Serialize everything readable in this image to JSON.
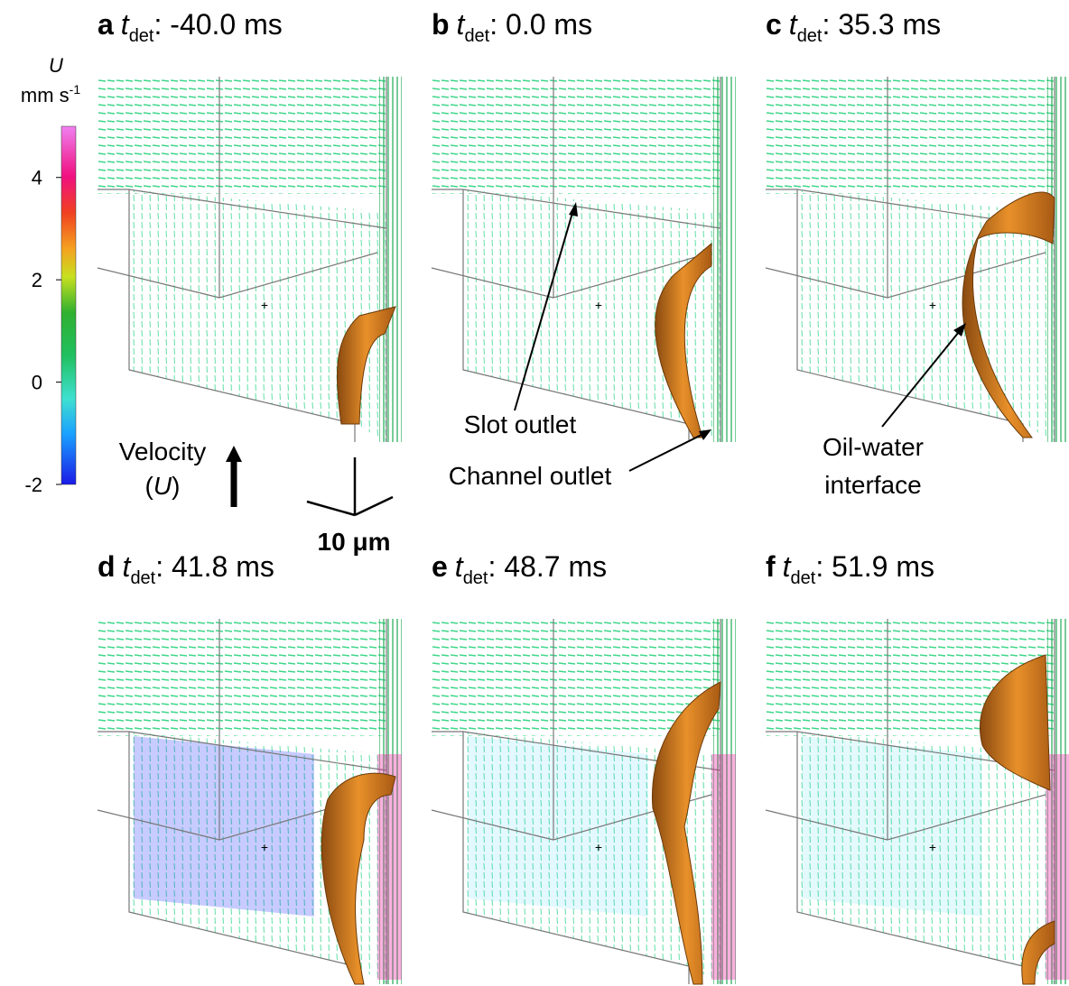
{
  "colorbar": {
    "symbol": "U",
    "unit": "mm s",
    "unit_exponent": "-1",
    "range": [
      -2,
      5
    ],
    "ticks": [
      4,
      2,
      0,
      -2
    ]
  },
  "panels": [
    {
      "letter": "a",
      "variable": "t",
      "subscript": "det",
      "rest": ": -40.0 ms"
    },
    {
      "letter": "b",
      "variable": "t",
      "subscript": "det",
      "rest": ": 0.0 ms"
    },
    {
      "letter": "c",
      "variable": "t",
      "subscript": "det",
      "rest": ": 35.3 ms"
    },
    {
      "letter": "d",
      "variable": "t",
      "subscript": "det",
      "rest": ": 41.8 ms"
    },
    {
      "letter": "e",
      "variable": "t",
      "subscript": "det",
      "rest": ": 48.7 ms"
    },
    {
      "letter": "f",
      "variable": "t",
      "subscript": "det",
      "rest": ": 51.9 ms"
    }
  ],
  "annotations": [
    {
      "lines": [
        "Slot outlet"
      ]
    },
    {
      "lines": [
        "Channel outlet"
      ]
    },
    {
      "lines": [
        "Oil-water",
        "interface"
      ]
    }
  ],
  "velocity": {
    "label": "Velocity",
    "symbol_parts": [
      "(",
      "U",
      ")"
    ]
  },
  "scale_bar": "10 μm"
}
